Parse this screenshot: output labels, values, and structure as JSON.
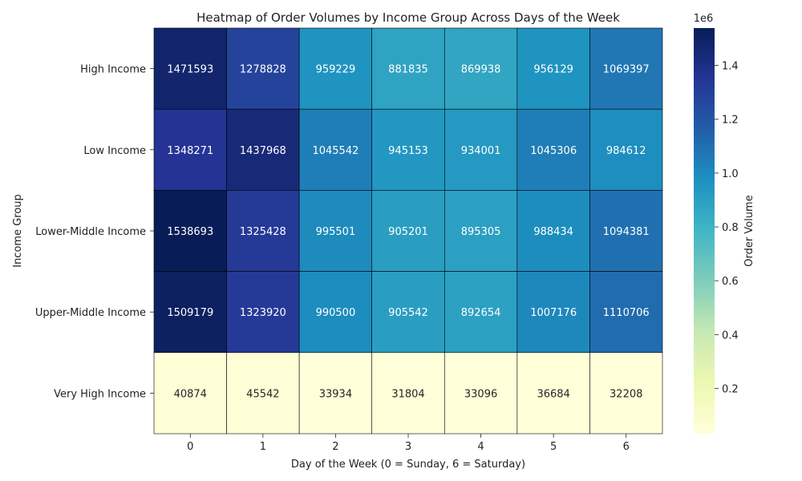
{
  "chart_data": {
    "type": "heatmap",
    "title": "Heatmap of Order Volumes by Income Group Across Days of the Week",
    "xlabel": "Day of the Week (0 = Sunday, 6 = Saturday)",
    "ylabel": "Income Group",
    "x_categories": [
      "0",
      "1",
      "2",
      "3",
      "4",
      "5",
      "6"
    ],
    "y_categories": [
      "High Income",
      "Low Income",
      "Lower-Middle Income",
      "Upper-Middle Income",
      "Very High Income"
    ],
    "values": [
      [
        1471593,
        1278828,
        959229,
        881835,
        869938,
        956129,
        1069397
      ],
      [
        1348271,
        1437968,
        1045542,
        945153,
        934001,
        1045306,
        984612
      ],
      [
        1538693,
        1325428,
        995501,
        905201,
        895305,
        988434,
        1094381
      ],
      [
        1509179,
        1323920,
        990500,
        905542,
        892654,
        1007176,
        1110706
      ],
      [
        40874,
        45542,
        33934,
        31804,
        33096,
        36684,
        32208
      ]
    ],
    "colormap": "YlGnBu",
    "colorbar": {
      "label": "Order Volume",
      "min": 31804,
      "max": 1538693,
      "ticks": [
        0.2,
        0.4,
        0.6,
        0.8,
        1.0,
        1.2,
        1.4
      ],
      "scale_label": "1e6"
    },
    "cell_border_color": "#000000"
  }
}
